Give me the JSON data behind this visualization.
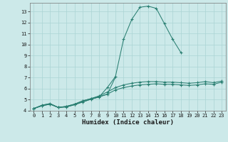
{
  "xlabel": "Humidex (Indice chaleur)",
  "x_values": [
    0,
    1,
    2,
    3,
    4,
    5,
    6,
    7,
    8,
    9,
    10,
    11,
    12,
    13,
    14,
    15,
    16,
    17,
    18,
    19,
    20,
    21,
    22,
    23
  ],
  "line1_y": [
    4.2,
    4.5,
    4.65,
    4.3,
    4.35,
    4.55,
    4.8,
    5.05,
    5.25,
    6.1,
    7.1,
    10.5,
    12.3,
    13.4,
    13.5,
    13.3,
    11.9,
    10.5,
    9.3,
    null,
    null,
    null,
    null,
    null
  ],
  "line2_y": [
    4.2,
    4.5,
    4.65,
    4.3,
    4.35,
    4.55,
    4.8,
    5.05,
    5.25,
    5.5,
    7.05,
    null,
    null,
    null,
    null,
    null,
    null,
    null,
    null,
    null,
    null,
    null,
    null,
    null
  ],
  "line3_y": [
    4.2,
    4.45,
    4.6,
    4.3,
    4.4,
    4.6,
    4.9,
    5.1,
    5.35,
    5.7,
    6.1,
    6.35,
    6.5,
    6.6,
    6.65,
    6.65,
    6.6,
    6.6,
    6.55,
    6.5,
    6.55,
    6.65,
    6.55,
    6.7
  ],
  "line4_y": [
    4.2,
    4.45,
    4.6,
    4.3,
    4.4,
    4.6,
    4.9,
    5.1,
    5.3,
    5.5,
    5.9,
    6.1,
    6.25,
    6.35,
    6.4,
    6.45,
    6.4,
    6.4,
    6.35,
    6.3,
    6.35,
    6.45,
    6.4,
    6.6
  ],
  "line_color": "#2a7f72",
  "bg_color": "#cce9e9",
  "grid_color": "#aad4d4",
  "ylim": [
    4,
    13.8
  ],
  "xlim": [
    -0.5,
    23.5
  ],
  "yticks": [
    4,
    5,
    6,
    7,
    8,
    9,
    10,
    11,
    12,
    13
  ],
  "xticks": [
    0,
    1,
    2,
    3,
    4,
    5,
    6,
    7,
    8,
    9,
    10,
    11,
    12,
    13,
    14,
    15,
    16,
    17,
    18,
    19,
    20,
    21,
    22,
    23
  ],
  "tick_fontsize": 5.0,
  "xlabel_fontsize": 6.5,
  "marker_size": 2.5,
  "lw": 0.75
}
